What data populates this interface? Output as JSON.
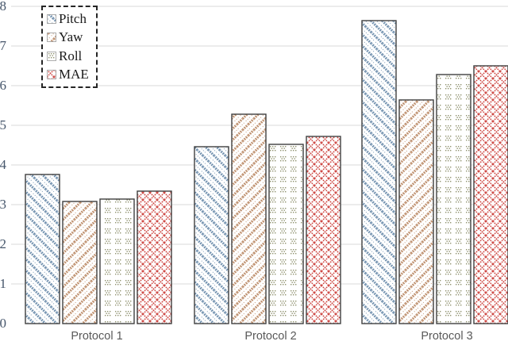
{
  "chart_data": {
    "type": "bar",
    "title": "",
    "xlabel": "",
    "ylabel": "",
    "categories": [
      "Protocol 1",
      "Protocol 2",
      "Protocol 3"
    ],
    "series": [
      {
        "name": "Pitch",
        "pattern": "diagonal-down-dotted",
        "color": "#6b8cab",
        "values": [
          3.76,
          4.46,
          7.64
        ]
      },
      {
        "name": "Yaw",
        "pattern": "diagonal-up-dotted",
        "color": "#bb8a66",
        "values": [
          3.08,
          5.28,
          5.64
        ]
      },
      {
        "name": "Roll",
        "pattern": "sparse-dots",
        "color": "#90926f",
        "values": [
          3.14,
          4.52,
          6.28
        ]
      },
      {
        "name": "MAE",
        "pattern": "diamond-dotted",
        "color": "#cc423d",
        "values": [
          3.34,
          4.72,
          6.5
        ]
      }
    ],
    "ylim": [
      0,
      8
    ],
    "yticks": [
      0,
      1,
      2,
      3,
      4,
      5,
      6,
      7,
      8
    ],
    "grid": true,
    "legend_position": "top-left",
    "legend_border": "dashed",
    "notes": "left edge of y-axis labels clipped; rightmost MAE bar clipped at right edge"
  },
  "colors": {
    "gridline": "#d9d9d9",
    "bar_outline": "#3f3f3f",
    "y_tick_label": "#46566b",
    "x_tick_label": "#595959",
    "legend_text": "#1a1a1a",
    "background": "#ffffff"
  }
}
